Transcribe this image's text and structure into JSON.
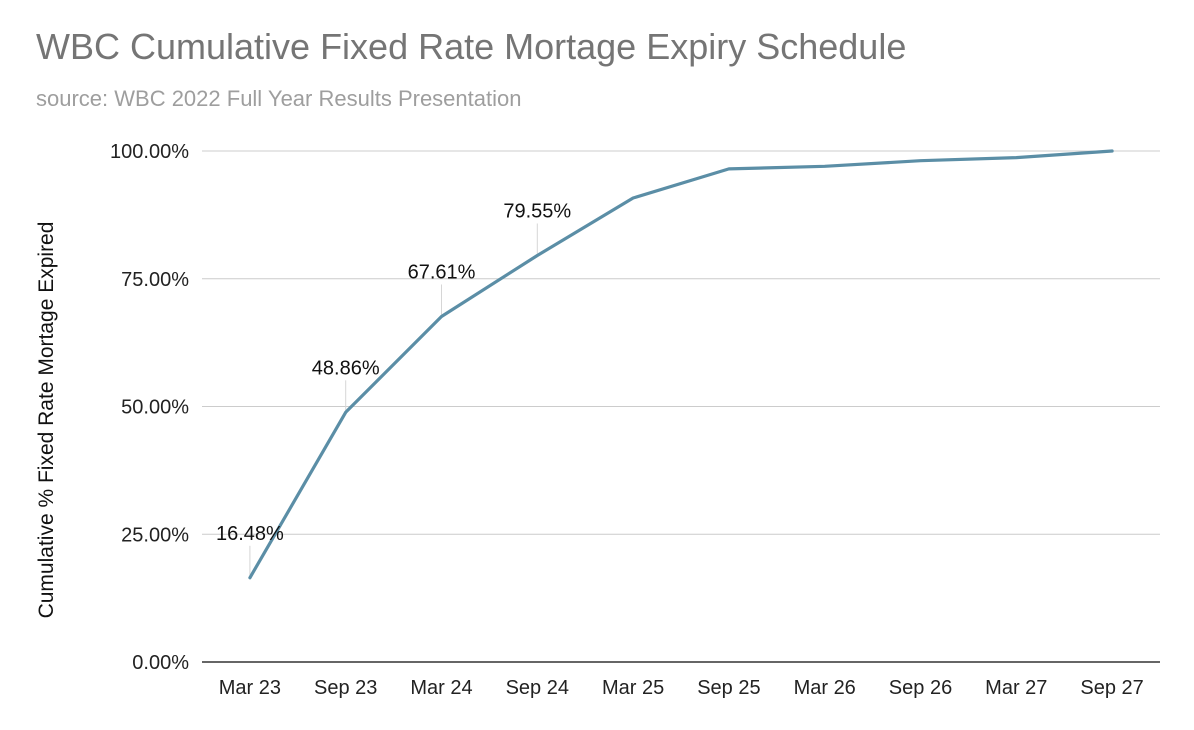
{
  "chart_data": {
    "type": "line",
    "title": "WBC Cumulative Fixed Rate Mortage Expiry Schedule",
    "subtitle": "source: WBC 2022 Full Year Results Presentation",
    "xlabel": "",
    "ylabel": "Cumulative % Fixed Rate Mortage Expired",
    "categories": [
      "Mar 23",
      "Sep 23",
      "Mar 24",
      "Sep 24",
      "Mar 25",
      "Sep 25",
      "Mar 26",
      "Sep 26",
      "Mar 27",
      "Sep 27"
    ],
    "series": [
      {
        "values": [
          16.48,
          48.86,
          67.61,
          79.55,
          90.8,
          96.5,
          97.0,
          98.1,
          98.7,
          100.0
        ],
        "color": "#5b8ea6"
      }
    ],
    "data_labels": [
      "16.48%",
      "48.86%",
      "67.61%",
      "79.55%",
      null,
      null,
      null,
      null,
      null,
      null
    ],
    "yticks": [
      "0.00%",
      "25.00%",
      "50.00%",
      "75.00%",
      "100.00%"
    ],
    "ylim": [
      0,
      100
    ],
    "grid": true,
    "colors": {
      "line": "#5b8ea6",
      "grid": "#cccccc",
      "axis": "#333333"
    }
  }
}
